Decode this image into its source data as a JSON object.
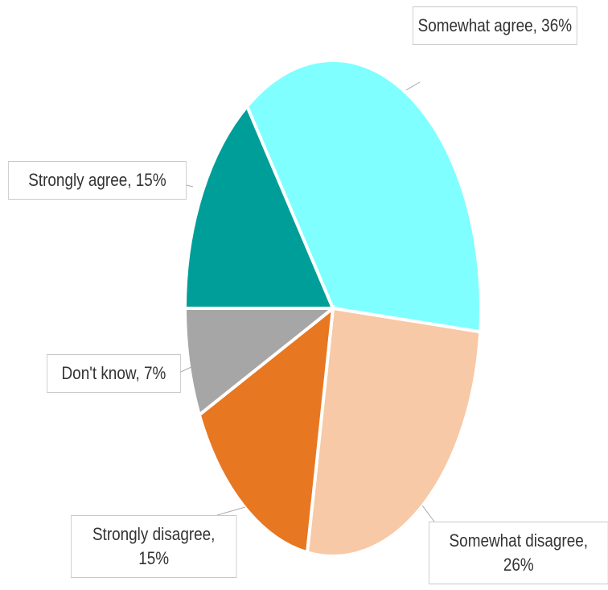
{
  "chart_data": {
    "type": "pie",
    "categories": [
      "Strongly agree",
      "Somewhat agree",
      "Somewhat disagree",
      "Strongly disagree",
      "Don't know"
    ],
    "values": [
      15,
      36,
      26,
      15,
      7
    ],
    "value_labels": [
      "Strongly agree, 15%",
      "Somewhat agree, 36%",
      "Somewhat disagree, 26%",
      "Strongly disagree, 15%",
      "Don't know, 7%"
    ],
    "colors": [
      "#009e99",
      "#7fffff",
      "#f7c9a6",
      "#e87722",
      "#a6a6a6"
    ]
  }
}
